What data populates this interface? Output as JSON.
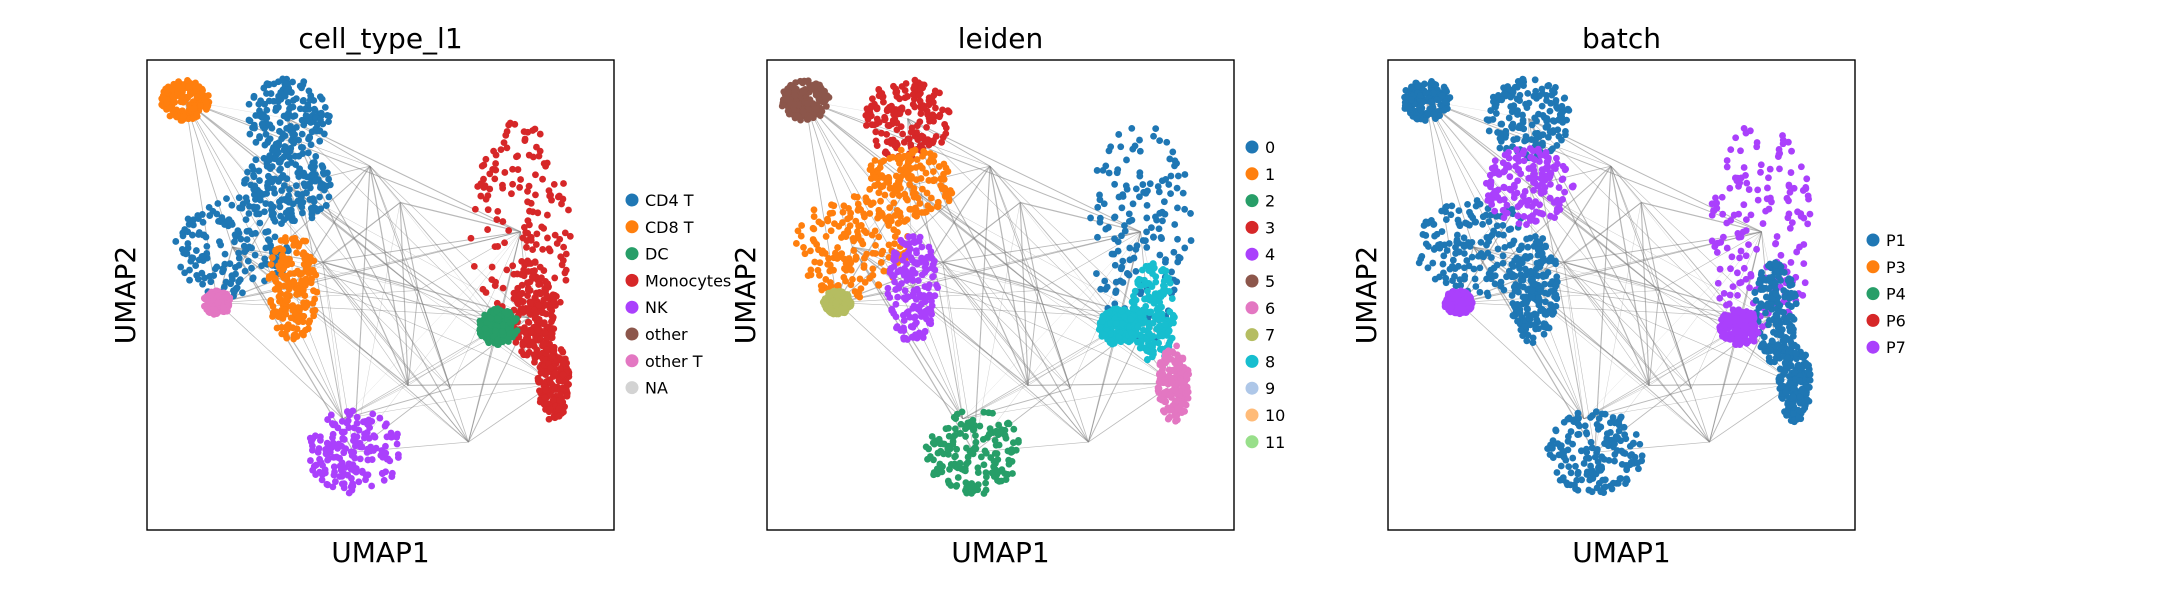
{
  "chart_data": [
    {
      "type": "scatter",
      "subtype": "umap_paga_overlay",
      "title": "cell_type_l1",
      "xlabel": "UMAP1",
      "ylabel": "UMAP2",
      "xticks": false,
      "yticks": false,
      "legend_position": "right",
      "categories": [
        {
          "name": "CD4 T",
          "color": "#1f77b4"
        },
        {
          "name": "CD8 T",
          "color": "#ff7f0e"
        },
        {
          "name": "DC",
          "color": "#279e68"
        },
        {
          "name": "Monocytes",
          "color": "#d62728"
        },
        {
          "name": "NK",
          "color": "#aa40fc"
        },
        {
          "name": "other",
          "color": "#8c564b"
        },
        {
          "name": "other T",
          "color": "#e377c2"
        },
        {
          "name": "NA",
          "color": "#d3d3d3"
        }
      ]
    },
    {
      "type": "scatter",
      "subtype": "umap_paga_overlay",
      "title": "leiden",
      "xlabel": "UMAP1",
      "ylabel": "UMAP2",
      "xticks": false,
      "yticks": false,
      "legend_position": "right",
      "categories": [
        {
          "name": "0",
          "color": "#1f77b4"
        },
        {
          "name": "1",
          "color": "#ff7f0e"
        },
        {
          "name": "2",
          "color": "#279e68"
        },
        {
          "name": "3",
          "color": "#d62728"
        },
        {
          "name": "4",
          "color": "#aa40fc"
        },
        {
          "name": "5",
          "color": "#8c564b"
        },
        {
          "name": "6",
          "color": "#e377c2"
        },
        {
          "name": "7",
          "color": "#b5bd61"
        },
        {
          "name": "8",
          "color": "#17becf"
        },
        {
          "name": "9",
          "color": "#aec7e8"
        },
        {
          "name": "10",
          "color": "#ffbb78"
        },
        {
          "name": "11",
          "color": "#98df8a"
        }
      ]
    },
    {
      "type": "scatter",
      "subtype": "umap_paga_overlay",
      "title": "batch",
      "xlabel": "UMAP1",
      "ylabel": "UMAP2",
      "xticks": false,
      "yticks": false,
      "legend_position": "right",
      "categories": [
        {
          "name": "P1",
          "color": "#1f77b4"
        },
        {
          "name": "P3",
          "color": "#ff7f0e"
        },
        {
          "name": "P4",
          "color": "#279e68"
        },
        {
          "name": "P6",
          "color": "#d62728"
        },
        {
          "name": "P7",
          "color": "#aa40fc"
        }
      ]
    }
  ]
}
